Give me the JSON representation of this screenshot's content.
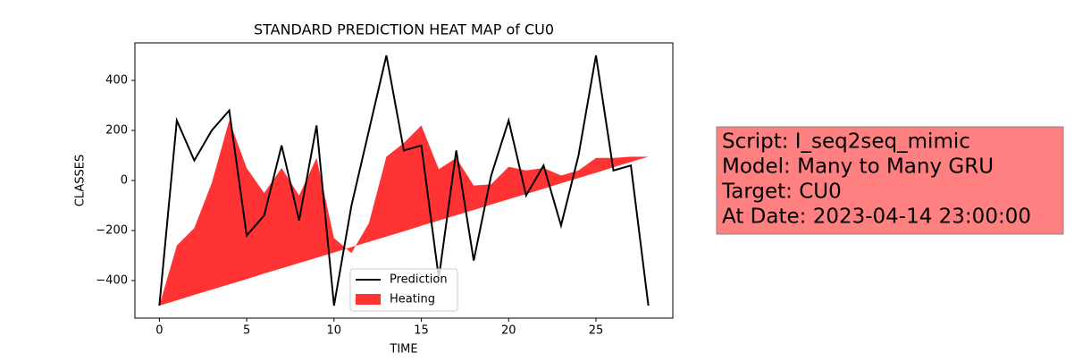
{
  "chart_data": {
    "type": "line_area",
    "title": "STANDARD PREDICTION HEAT MAP of CU0",
    "x_label": "TIME",
    "y_label": "CLASSES",
    "x": [
      0,
      1,
      2,
      3,
      4,
      5,
      6,
      7,
      8,
      9,
      10,
      11,
      12,
      13,
      14,
      15,
      16,
      17,
      18,
      19,
      20,
      21,
      22,
      23,
      24,
      25,
      26,
      27,
      28
    ],
    "series": [
      {
        "name": "Prediction",
        "kind": "line",
        "color": "#000000",
        "values": [
          -500,
          240,
          80,
          200,
          280,
          -220,
          -140,
          140,
          -160,
          220,
          -500,
          -100,
          200,
          500,
          120,
          140,
          -390,
          120,
          -320,
          20,
          240,
          -60,
          60,
          -180,
          100,
          500,
          40,
          60,
          -500
        ]
      },
      {
        "name": "Heating",
        "kind": "fill_between",
        "color": "#ff0000",
        "alpha": 0.8,
        "values": [
          -500,
          -260,
          -190,
          -10,
          240,
          50,
          -50,
          50,
          -60,
          90,
          -230,
          -290,
          -170,
          95,
          150,
          220,
          45,
          90,
          -20,
          -15,
          55,
          40,
          50,
          20,
          40,
          90,
          90,
          95,
          95
        ],
        "base": [
          -500,
          -479,
          -457,
          -436,
          -415,
          -394,
          -372,
          -351,
          -330,
          -309,
          -288,
          -266,
          -245,
          -224,
          -203,
          -181,
          -160,
          -139,
          -118,
          -96,
          -75,
          -54,
          -33,
          -11,
          10,
          31,
          53,
          74,
          95
        ]
      }
    ],
    "xlim": [
      -1.4,
      29.4
    ],
    "ylim": [
      -550,
      550
    ],
    "xticks": [
      0,
      5,
      10,
      15,
      20,
      25
    ],
    "yticks": [
      {
        "value": -400,
        "label": "−400"
      },
      {
        "value": -200,
        "label": "−200"
      },
      0,
      200,
      400
    ],
    "legend": "lower center",
    "text_box": {
      "color": "#ff8080",
      "lines": [
        "Script: I_seq2seq_mimic",
        "Model: Many to Many GRU",
        "Target: CU0",
        "At Date: 2023-04-14 23:00:00"
      ]
    }
  }
}
